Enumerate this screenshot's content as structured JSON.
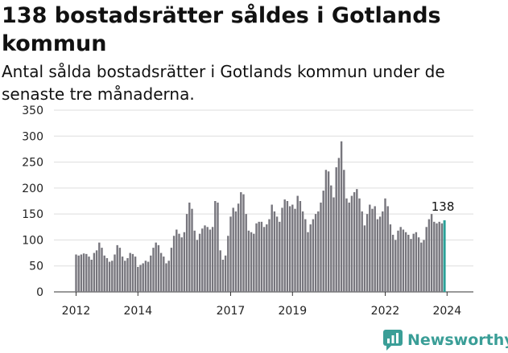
{
  "title": "138 bostadsrätter såldes i Gotlands kommun",
  "subtitle": "Antal sålda bostadsrätter i Gotlands kommun under de senaste tre månaderna.",
  "brand": {
    "name": "Newsworthy",
    "logo_icon": "newsworthy-chart-icon"
  },
  "colors": {
    "bar": "#77767d",
    "highlight": "#2aa198",
    "grid": "#dddddd",
    "brand": "#3a9e97"
  },
  "chart_data": {
    "type": "bar",
    "title": "138 bostadsrätter såldes i Gotlands kommun",
    "subtitle": "Antal sålda bostadsrätter i Gotlands kommun under de senaste tre månaderna.",
    "xlabel": "",
    "ylabel": "",
    "ylim": [
      0,
      350
    ],
    "yticks": [
      0,
      50,
      100,
      150,
      200,
      250,
      300,
      350
    ],
    "xtick_labels": [
      "2012",
      "2014",
      "2017",
      "2019",
      "2022",
      "2024"
    ],
    "xtick_indices": [
      0,
      24,
      60,
      84,
      120,
      144
    ],
    "grid": true,
    "highlight_label": "138",
    "start_month": "2012-01",
    "values": [
      72,
      70,
      72,
      74,
      73,
      68,
      62,
      75,
      80,
      95,
      85,
      70,
      65,
      58,
      60,
      72,
      90,
      85,
      68,
      60,
      65,
      75,
      73,
      68,
      48,
      52,
      55,
      60,
      58,
      70,
      85,
      95,
      90,
      75,
      68,
      55,
      60,
      85,
      108,
      120,
      112,
      105,
      115,
      150,
      172,
      160,
      118,
      100,
      112,
      122,
      128,
      125,
      120,
      125,
      175,
      172,
      80,
      62,
      70,
      108,
      145,
      162,
      155,
      170,
      192,
      188,
      150,
      118,
      115,
      112,
      132,
      135,
      135,
      125,
      130,
      140,
      168,
      155,
      145,
      135,
      162,
      178,
      175,
      165,
      168,
      160,
      185,
      175,
      155,
      140,
      115,
      130,
      140,
      150,
      155,
      172,
      195,
      235,
      232,
      205,
      182,
      240,
      258,
      290,
      235,
      180,
      172,
      185,
      192,
      198,
      180,
      155,
      128,
      150,
      168,
      160,
      165,
      140,
      145,
      155,
      180,
      165,
      130,
      110,
      100,
      118,
      125,
      120,
      115,
      110,
      102,
      112,
      115,
      105,
      95,
      100,
      125,
      140,
      150,
      135,
      132,
      135,
      132,
      138
    ]
  }
}
